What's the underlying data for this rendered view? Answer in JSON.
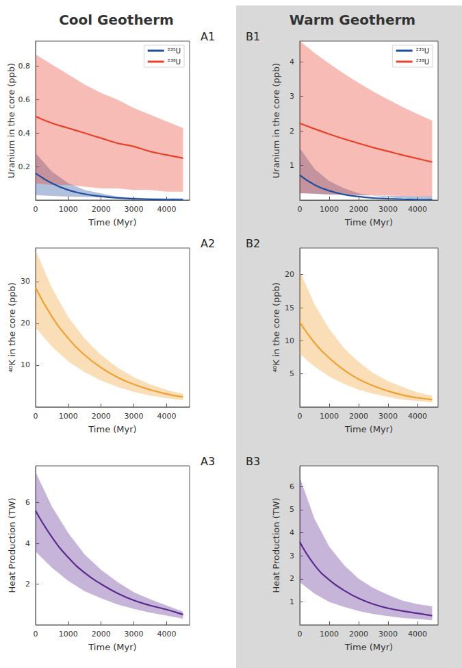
{
  "column_titles": [
    "Cool Geotherm",
    "Warm Geotherm"
  ],
  "chart_data": [
    {
      "type": "line",
      "title": "A1",
      "xlabel": "Time (Myr)",
      "ylabel": "Uranium in the core (ppb)",
      "x": [
        0,
        500,
        1000,
        1500,
        2000,
        2500,
        3000,
        3500,
        4000,
        4500
      ],
      "xlim": [
        0,
        4700
      ],
      "xticks": [
        0,
        1000,
        2000,
        3000,
        4000
      ],
      "ylim": [
        0,
        0.95
      ],
      "yticks": [
        0.2,
        0.4,
        0.6,
        0.8
      ],
      "legend": "upper right",
      "series": [
        {
          "name": "²³⁵U",
          "color": "#1f4e9c",
          "values": [
            0.16,
            0.1,
            0.06,
            0.036,
            0.022,
            0.013,
            0.008,
            0.005,
            0.003,
            0.002
          ],
          "lower": [
            0.03,
            0.025,
            0.02,
            0.018,
            0.016,
            0.014,
            0.012,
            0.011,
            0.01,
            0.01
          ],
          "upper": [
            0.28,
            0.17,
            0.1,
            0.06,
            0.04,
            0.02,
            0.014,
            0.01,
            0.005,
            0.003
          ]
        },
        {
          "name": "²³⁸U",
          "color": "#e8402a",
          "values": [
            0.5,
            0.46,
            0.43,
            0.4,
            0.37,
            0.34,
            0.32,
            0.29,
            0.27,
            0.25
          ],
          "lower": [
            0.1,
            0.09,
            0.09,
            0.08,
            0.07,
            0.07,
            0.06,
            0.06,
            0.05,
            0.05
          ],
          "upper": [
            0.87,
            0.81,
            0.75,
            0.69,
            0.64,
            0.6,
            0.55,
            0.51,
            0.47,
            0.43
          ]
        }
      ]
    },
    {
      "type": "line",
      "title": "A2",
      "xlabel": "Time (Myr)",
      "ylabel": "⁴⁰K in the core (ppb)",
      "x": [
        0,
        500,
        1000,
        1500,
        2000,
        2500,
        3000,
        3500,
        4000,
        4500
      ],
      "xlim": [
        0,
        4700
      ],
      "xticks": [
        0,
        1000,
        2000,
        3000,
        4000
      ],
      "ylim": [
        0,
        38
      ],
      "yticks": [
        10,
        20,
        30
      ],
      "series": [
        {
          "color": "#f0a030",
          "values": [
            28.5,
            21.6,
            16.4,
            12.4,
            9.4,
            7.1,
            5.4,
            4.1,
            3.1,
            2.4
          ],
          "lower": [
            19,
            14.4,
            10.9,
            8.3,
            6.3,
            4.8,
            3.6,
            2.7,
            2.1,
            1.6
          ],
          "upper": [
            37.5,
            28.4,
            21.5,
            16.3,
            12.4,
            9.4,
            7.1,
            5.4,
            4.1,
            3.1
          ]
        }
      ]
    },
    {
      "type": "line",
      "title": "A3",
      "xlabel": "Time (Myr)",
      "ylabel": "Heat Production (TW)",
      "x": [
        0,
        500,
        1000,
        1500,
        2000,
        2500,
        3000,
        3500,
        4000,
        4500
      ],
      "xlim": [
        0,
        4700
      ],
      "xticks": [
        0,
        1000,
        2000,
        3000,
        4000
      ],
      "ylim": [
        0,
        7.8
      ],
      "yticks": [
        2,
        4,
        6
      ],
      "series": [
        {
          "color": "#5b2a8e",
          "values": [
            5.6,
            4.3,
            3.3,
            2.55,
            2.0,
            1.55,
            1.2,
            0.95,
            0.75,
            0.5
          ],
          "lower": [
            3.6,
            2.8,
            2.15,
            1.65,
            1.3,
            1.0,
            0.78,
            0.6,
            0.45,
            0.3
          ],
          "upper": [
            7.5,
            5.8,
            4.5,
            3.45,
            2.7,
            2.1,
            1.6,
            1.25,
            0.95,
            0.65
          ]
        }
      ]
    },
    {
      "type": "line",
      "title": "B1",
      "xlabel": "Time (Myr)",
      "ylabel": "Uranium in the core (ppb)",
      "x": [
        0,
        500,
        1000,
        1500,
        2000,
        2500,
        3000,
        3500,
        4000,
        4500
      ],
      "xlim": [
        0,
        4700
      ],
      "xticks": [
        0,
        1000,
        2000,
        3000,
        4000
      ],
      "ylim": [
        0,
        4.6
      ],
      "yticks": [
        1,
        2,
        3,
        4
      ],
      "legend": "upper right",
      "series": [
        {
          "name": "²³⁵U",
          "color": "#1f4e9c",
          "values": [
            0.72,
            0.44,
            0.27,
            0.16,
            0.1,
            0.06,
            0.04,
            0.025,
            0.015,
            0.01
          ],
          "lower": [
            0.2,
            0.18,
            0.16,
            0.15,
            0.14,
            0.13,
            0.12,
            0.12,
            0.11,
            0.11
          ],
          "upper": [
            1.5,
            0.9,
            0.55,
            0.34,
            0.2,
            0.12,
            0.08,
            0.05,
            0.03,
            0.02
          ]
        },
        {
          "name": "²³⁸U",
          "color": "#e8402a",
          "values": [
            2.22,
            2.06,
            1.91,
            1.77,
            1.64,
            1.52,
            1.41,
            1.3,
            1.2,
            1.1
          ],
          "lower": [
            0.2,
            0.19,
            0.17,
            0.16,
            0.15,
            0.14,
            0.13,
            0.12,
            0.11,
            0.1
          ],
          "upper": [
            4.6,
            4.26,
            3.95,
            3.66,
            3.39,
            3.14,
            2.91,
            2.69,
            2.49,
            2.3
          ]
        }
      ]
    },
    {
      "type": "line",
      "title": "B2",
      "xlabel": "Time (Myr)",
      "ylabel": "⁴⁰K in the core (ppb)",
      "x": [
        0,
        500,
        1000,
        1500,
        2000,
        2500,
        3000,
        3500,
        4000,
        4500
      ],
      "xlim": [
        0,
        4700
      ],
      "xticks": [
        0,
        1000,
        2000,
        3000,
        4000
      ],
      "ylim": [
        0,
        24
      ],
      "yticks": [
        5,
        10,
        15,
        20
      ],
      "series": [
        {
          "color": "#f0a030",
          "values": [
            12.8,
            9.7,
            7.4,
            5.6,
            4.2,
            3.2,
            2.4,
            1.8,
            1.4,
            1.1
          ],
          "lower": [
            8.0,
            6.1,
            4.6,
            3.5,
            2.6,
            2.0,
            1.5,
            1.1,
            0.9,
            0.7
          ],
          "upper": [
            20.5,
            15.5,
            11.8,
            8.9,
            6.8,
            5.1,
            3.9,
            3.0,
            2.2,
            1.7
          ]
        }
      ]
    },
    {
      "type": "line",
      "title": "B3",
      "xlabel": "Time (Myr)",
      "ylabel": "Heat Production (TW)",
      "x": [
        0,
        500,
        1000,
        1500,
        2000,
        2500,
        3000,
        3500,
        4000,
        4500
      ],
      "xlim": [
        0,
        4700
      ],
      "xticks": [
        0,
        1000,
        2000,
        3000,
        4000
      ],
      "ylim": [
        0,
        6.9
      ],
      "yticks": [
        1,
        2,
        3,
        4,
        5,
        6
      ],
      "series": [
        {
          "color": "#5b2a8e",
          "values": [
            3.6,
            2.6,
            1.95,
            1.5,
            1.15,
            0.9,
            0.72,
            0.6,
            0.5,
            0.4
          ],
          "lower": [
            1.85,
            1.35,
            1.0,
            0.78,
            0.6,
            0.47,
            0.38,
            0.3,
            0.25,
            0.2
          ],
          "upper": [
            6.4,
            4.6,
            3.4,
            2.6,
            2.0,
            1.6,
            1.3,
            1.05,
            0.9,
            0.8
          ]
        }
      ]
    }
  ]
}
